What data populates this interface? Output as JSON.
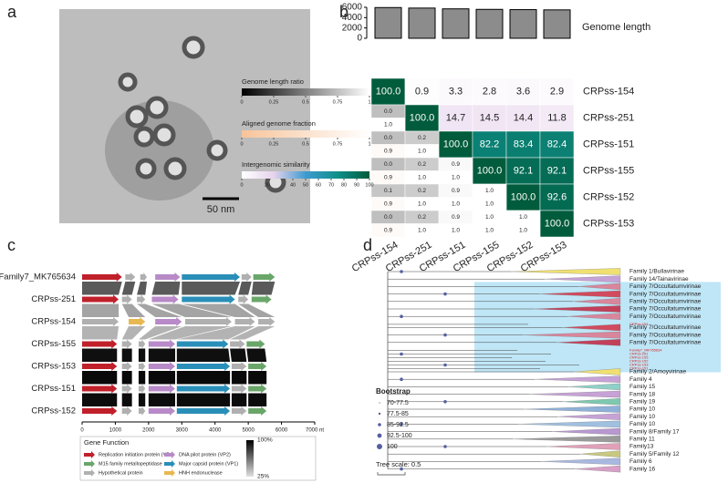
{
  "panel_labels": [
    "a",
    "b",
    "c",
    "d"
  ],
  "panel_a": {
    "scale_bar": "50 nm"
  },
  "panel_b": {
    "genomes": [
      "CRPss-154",
      "CRPss-251",
      "CRPss-151",
      "CRPss-155",
      "CRPss-152",
      "CRPss-153"
    ],
    "genome_length": {
      "title": "Genome length",
      "values": [
        5950,
        5850,
        5700,
        5600,
        5550,
        5500
      ],
      "ylim": [
        0,
        6000
      ],
      "yticks": [
        0,
        2000,
        4000,
        6000
      ],
      "color": "#8c8c8c"
    },
    "similarity": {
      "title": "Intergenomic similarity",
      "values": [
        [
          100,
          0.9,
          3.3,
          2.8,
          3.6,
          2.9
        ],
        [
          100,
          14.7,
          14.5,
          14.4,
          11.8
        ],
        [
          100,
          82.2,
          83.4,
          82.4
        ],
        [
          100,
          92.1,
          92.1
        ],
        [
          100,
          92.6
        ],
        [
          100
        ]
      ],
      "value_labels": [
        [
          "100.0",
          "0.9",
          "3.3",
          "2.8",
          "3.6",
          "2.9"
        ],
        [
          "100.0",
          "14.7",
          "14.5",
          "14.4",
          "11.8"
        ],
        [
          "100.0",
          "82.2",
          "83.4",
          "82.4"
        ],
        [
          "100.0",
          "92.1",
          "92.1"
        ],
        [
          "100.0",
          "92.6"
        ],
        [
          "100.0"
        ]
      ],
      "lim": [
        0,
        100
      ],
      "ticks": [
        0,
        20,
        40,
        50,
        60,
        70,
        80,
        90,
        100
      ],
      "colors": [
        "#ffffff",
        "#e6d3ec",
        "#3f9bd0",
        "#0f8f8a",
        "#005c3c"
      ]
    },
    "length_ratio": {
      "title": "Genome length ratio",
      "values": [
        [
          0
        ],
        [
          0,
          0.2
        ],
        [
          0,
          0.2,
          0.9
        ],
        [
          0.1,
          0.2,
          0.9,
          1
        ],
        [
          0,
          0.2,
          0.9,
          1,
          1
        ]
      ],
      "value_labels": [
        [
          "0.0"
        ],
        [
          "0.0",
          "0.2"
        ],
        [
          "0.0",
          "0.2",
          "0.9"
        ],
        [
          "0.1",
          "0.2",
          "0.9",
          "1.0"
        ],
        [
          "0.0",
          "0.2",
          "0.9",
          "1.0",
          "1.0"
        ]
      ],
      "lim": [
        0,
        1
      ],
      "ticks": [
        0,
        0.25,
        0.5,
        0.75,
        1
      ],
      "colors": [
        "#000000",
        "#ffffff"
      ]
    },
    "aligned_fraction": {
      "title": "Aligned genome fraction",
      "values": [
        [
          1
        ],
        [
          0.9,
          1
        ],
        [
          0.9,
          1,
          1
        ],
        [
          0.9,
          1,
          1,
          1
        ],
        [
          0.9,
          1,
          1,
          1,
          1
        ]
      ],
      "value_labels": [
        [
          "1.0"
        ],
        [
          "0.9",
          "1.0"
        ],
        [
          "0.9",
          "1.0",
          "1.0"
        ],
        [
          "0.9",
          "1.0",
          "1.0",
          "1.0"
        ],
        [
          "0.9",
          "1.0",
          "1.0",
          "1.0",
          "1.0"
        ]
      ],
      "lim": [
        0,
        1
      ],
      "ticks": [
        0,
        0.25,
        0.5,
        0.75,
        1
      ],
      "colors": [
        "#f8c49a",
        "#ffffff"
      ]
    }
  },
  "panel_c": {
    "rows": [
      {
        "name": "Family7_MK765634",
        "genes": [
          [
            0,
            1200,
            0
          ],
          [
            1300,
            1600,
            4
          ],
          [
            1750,
            1950,
            4
          ],
          [
            2200,
            2950,
            1
          ],
          [
            3000,
            4750,
            3
          ],
          [
            4800,
            5100,
            4
          ],
          [
            5150,
            5800,
            2
          ]
        ]
      },
      {
        "name": "CRPss-251",
        "genes": [
          [
            0,
            1100,
            0
          ],
          [
            1200,
            1500,
            4
          ],
          [
            1650,
            1900,
            4
          ],
          [
            2100,
            2900,
            1
          ],
          [
            3000,
            4600,
            3
          ],
          [
            4700,
            5000,
            4
          ],
          [
            5100,
            5700,
            2
          ]
        ]
      },
      {
        "name": "CRPss-154",
        "genes": [
          [
            0,
            1100,
            4
          ],
          [
            1400,
            1900,
            5
          ],
          [
            2200,
            3000,
            1
          ],
          [
            3100,
            4500,
            4
          ],
          [
            4600,
            5200,
            4
          ],
          [
            5300,
            5800,
            4
          ]
        ]
      },
      {
        "name": "CRPss-155",
        "genes": [
          [
            0,
            1050,
            0
          ],
          [
            1200,
            1500,
            4
          ],
          [
            1700,
            1900,
            4
          ],
          [
            2000,
            2800,
            1
          ],
          [
            2850,
            4400,
            3
          ],
          [
            4450,
            4900,
            4
          ],
          [
            4950,
            5500,
            2
          ]
        ]
      },
      {
        "name": "CRPss-153",
        "genes": [
          [
            0,
            1050,
            0
          ],
          [
            1200,
            1500,
            4
          ],
          [
            1700,
            1900,
            4
          ],
          [
            2000,
            2800,
            1
          ],
          [
            2850,
            4450,
            3
          ],
          [
            4500,
            4950,
            4
          ],
          [
            5000,
            5550,
            2
          ]
        ]
      },
      {
        "name": "CRPss-151",
        "genes": [
          [
            0,
            1050,
            0
          ],
          [
            1200,
            1500,
            4
          ],
          [
            1700,
            1900,
            4
          ],
          [
            2000,
            2800,
            1
          ],
          [
            2850,
            4450,
            3
          ],
          [
            4500,
            4950,
            4
          ],
          [
            5000,
            5550,
            2
          ]
        ]
      },
      {
        "name": "CRPss-152",
        "genes": [
          [
            0,
            1050,
            0
          ],
          [
            1200,
            1500,
            4
          ],
          [
            1700,
            1900,
            4
          ],
          [
            2000,
            2800,
            1
          ],
          [
            2850,
            4450,
            3
          ],
          [
            4500,
            4950,
            4
          ],
          [
            5000,
            5550,
            2
          ]
        ]
      }
    ],
    "identity": {
      "values": [
        70,
        45,
        40,
        95,
        97,
        96
      ],
      "lim": [
        25,
        100
      ],
      "ticks": [
        {
          "value": 100,
          "label": "100%"
        },
        {
          "value": 25,
          "label": "25%"
        }
      ],
      "colors": [
        "#e0e0e0",
        "#000000"
      ]
    },
    "xlim": [
      0,
      7000
    ],
    "xticks": [
      0,
      1000,
      2000,
      3000,
      4000,
      5000,
      6000,
      {
        "value": 7000,
        "label": "7000 nt"
      }
    ],
    "legend_title": "Gene Function",
    "functions": [
      {
        "name": "Replication initiation protein (VP4)",
        "color": "#c0202a"
      },
      {
        "name": "DNA pilot protein (VP2)",
        "color": "#b88ac8"
      },
      {
        "name": "M15 family metallopeptidase",
        "color": "#6aa66a"
      },
      {
        "name": "Major capsid protein (VP1)",
        "color": "#2a8fb8"
      },
      {
        "name": "Hypothetical protein",
        "color": "#b0b0b0"
      },
      {
        "name": "HNH endonuclease",
        "color": "#e8b850"
      }
    ]
  },
  "panel_d": {
    "leaves": [
      {
        "name": "Family 1/Bullavirinae",
        "color": "#f0e070"
      },
      {
        "name": "Family 14/Tainavirinae",
        "color": "#c6a2d6"
      },
      {
        "name": "Family 7/Occultatumvirinae",
        "color": "#d9869c"
      },
      {
        "name": "Family 7/Occultatumvirinae",
        "color": "#d24a5e"
      },
      {
        "name": "Family 7/Occultatumvirinae",
        "color": "#d9869c"
      },
      {
        "name": "Family 7/Occultatumvirinae",
        "color": "#c2405a"
      },
      {
        "name": "Family 7/Occultatumvirinae",
        "color": "#d9869c"
      },
      {
        "name": "CRPss-154",
        "label_color": "#d62020"
      },
      {
        "name": "Family 7/Occultatumvirinae",
        "color": "#d24a5e"
      },
      {
        "name": "Family 7/Occultatumvirinae",
        "color": "#d9869c"
      },
      {
        "name": "Family 7/Occultatumvirinae",
        "color": "#c2405a"
      },
      {
        "name": "Family7_MK765634",
        "label_color": "#d62020"
      },
      {
        "name": "CRPss-251",
        "label_color": "#d62020"
      },
      {
        "name": "CRPss-155",
        "label_color": "#d62020"
      },
      {
        "name": "CRPss-152",
        "label_color": "#d62020"
      },
      {
        "name": "CRPss-153",
        "label_color": "#d62020"
      },
      {
        "name": "CRPss-151",
        "label_color": "#d62020"
      },
      {
        "name": "Family 2/Amoyvirinae",
        "color": "#f0e070"
      },
      {
        "name": "Family 4",
        "color": "#c6a2d6"
      },
      {
        "name": "Family 15",
        "color": "#8fd0c8"
      },
      {
        "name": "Family 18",
        "color": "#c6a2d6"
      },
      {
        "name": "Family 19",
        "color": "#7ec8b0"
      },
      {
        "name": "Family 10",
        "color": "#8fb0d8"
      },
      {
        "name": "Family 10",
        "color": "#c6a2d6"
      },
      {
        "name": "Family 10",
        "color": "#a0c0e0"
      },
      {
        "name": "Family 8/Family 17",
        "color": "#b898d0"
      },
      {
        "name": "Family 11",
        "color": "#9a9a9a"
      },
      {
        "name": "Family13",
        "color": "#e0a0b8"
      },
      {
        "name": "Family 5/Family 12",
        "color": "#c8c880"
      },
      {
        "name": "Family 6",
        "color": "#a8b8e0"
      },
      {
        "name": "Family 16",
        "color": "#d8a0c8"
      }
    ],
    "bootstrap": {
      "title": "Bootstrap",
      "classes": [
        "70-77.5",
        "77.5-85",
        "85-92.5",
        "92.5-100",
        "100"
      ],
      "color": "#5560a0"
    },
    "highlight_color": "#bfe6f6",
    "tree_scale": "Tree scale: 0.5"
  }
}
